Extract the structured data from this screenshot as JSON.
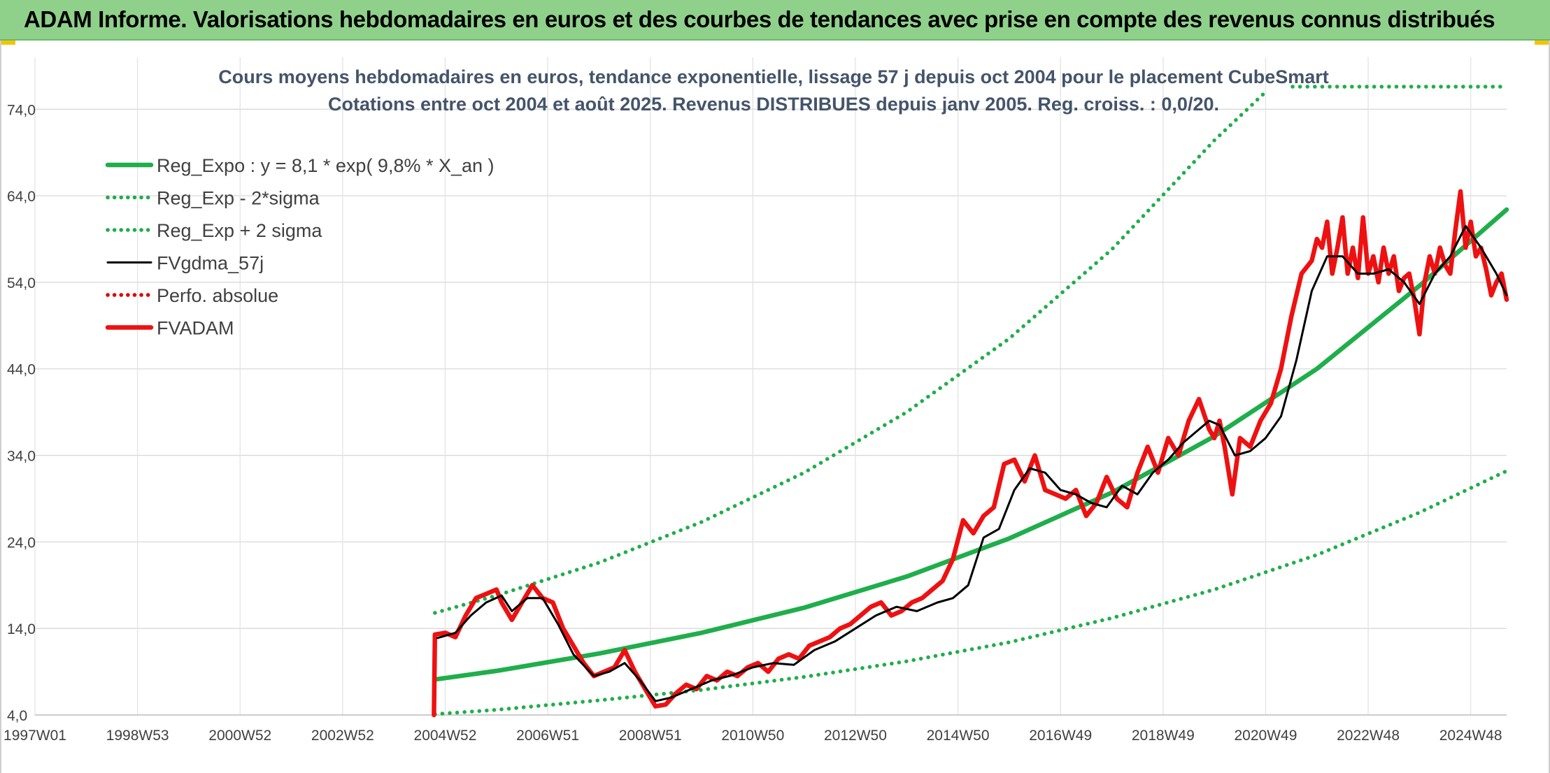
{
  "header": {
    "title": "ADAM Informe. Valorisations hebdomadaires en euros et des courbes de tendances avec prise en compte des revenus connus distribués"
  },
  "colors": {
    "header_bg": "#8fd18b",
    "reg_expo": "#1fae4b",
    "sigma_bands": "#1fae4b",
    "smoothed": "#000000",
    "perfo_absolue": "#e00000",
    "fvadam": "#ee1111",
    "grid": "#d9d9d9",
    "title_text": "#44546a"
  },
  "chart_data": {
    "type": "line",
    "title": "Cours moyens hebdomadaires en euros, tendance exponentielle, lissage 57 j depuis oct 2004 pour le placement CubeSmart",
    "subtitle": "Cotations entre oct 2004 et août 2025. Revenus DISTRIBUES depuis janv 2005. Reg. croiss. : 0,0/20.",
    "xlabel": "",
    "ylabel": "",
    "x_range": [
      1997.0,
      2025.7
    ],
    "ylim": [
      4,
      80
    ],
    "y_ticks": [
      4,
      14,
      24,
      34,
      44,
      54,
      64,
      74
    ],
    "y_tick_labels": [
      "4,0",
      "14,0",
      "24,0",
      "34,0",
      "44,0",
      "54,0",
      "64,0",
      "74,0"
    ],
    "x_ticks": [
      {
        "x": 1997.0,
        "label": "1997W01"
      },
      {
        "x": 1999.0,
        "label": "1998W53"
      },
      {
        "x": 2001.0,
        "label": "2000W52"
      },
      {
        "x": 2003.0,
        "label": "2002W52"
      },
      {
        "x": 2005.0,
        "label": "2004W52"
      },
      {
        "x": 2007.0,
        "label": "2006W51"
      },
      {
        "x": 2009.0,
        "label": "2008W51"
      },
      {
        "x": 2011.0,
        "label": "2010W50"
      },
      {
        "x": 2013.0,
        "label": "2012W50"
      },
      {
        "x": 2015.0,
        "label": "2014W50"
      },
      {
        "x": 2017.0,
        "label": "2016W49"
      },
      {
        "x": 2019.0,
        "label": "2018W49"
      },
      {
        "x": 2021.0,
        "label": "2020W49"
      },
      {
        "x": 2023.0,
        "label": "2022W48"
      },
      {
        "x": 2025.0,
        "label": "2024W48"
      }
    ],
    "grid": true,
    "legend_position": "top-left",
    "series": [
      {
        "name": "Reg_Expo : y = 8,1 * exp( 9,8% *  X_an )",
        "style": "solid-thick",
        "color": "#1fae4b",
        "x": [
          2004.8,
          2006,
          2008,
          2010,
          2012,
          2014,
          2016,
          2018,
          2020,
          2022,
          2024,
          2025.7
        ],
        "values": [
          8.1,
          9.1,
          11.1,
          13.5,
          16.4,
          20.0,
          24.4,
          29.7,
          36.2,
          44.0,
          53.6,
          62.4
        ]
      },
      {
        "name": "Reg_Exp - 2*sigma",
        "style": "dotted",
        "color": "#1fae4b",
        "x": [
          2004.8,
          2006,
          2008,
          2010,
          2012,
          2014,
          2016,
          2018,
          2020,
          2022,
          2024,
          2025.7
        ],
        "values": [
          4.1,
          4.6,
          5.7,
          6.9,
          8.4,
          10.2,
          12.4,
          15.2,
          18.5,
          22.5,
          27.4,
          32.2
        ]
      },
      {
        "name": "Reg_Exp + 2 sigma",
        "style": "dotted",
        "color": "#1fae4b",
        "x": [
          2004.8,
          2006,
          2008,
          2010,
          2012,
          2014,
          2016,
          2018,
          2020,
          2021.0
        ],
        "values": [
          15.8,
          17.8,
          21.6,
          26.3,
          32.0,
          39.0,
          47.5,
          57.8,
          70.4,
          76.0
        ]
      },
      {
        "name": "FVgdma_57j",
        "style": "solid",
        "color": "#000000",
        "x": [
          2004.85,
          2005.2,
          2005.5,
          2005.8,
          2006.1,
          2006.3,
          2006.6,
          2006.9,
          2007.2,
          2007.5,
          2007.9,
          2008.2,
          2008.5,
          2008.8,
          2009.1,
          2009.4,
          2009.8,
          2010.2,
          2010.6,
          2011.0,
          2011.4,
          2011.8,
          2012.2,
          2012.6,
          2013.0,
          2013.4,
          2013.8,
          2014.2,
          2014.6,
          2014.9,
          2015.2,
          2015.5,
          2015.8,
          2016.1,
          2016.4,
          2016.7,
          2017.0,
          2017.3,
          2017.6,
          2017.9,
          2018.2,
          2018.5,
          2018.8,
          2019.1,
          2019.4,
          2019.7,
          2019.9,
          2020.1,
          2020.4,
          2020.7,
          2021.0,
          2021.3,
          2021.6,
          2021.9,
          2022.2,
          2022.5,
          2022.8,
          2023.1,
          2023.4,
          2023.7,
          2024.0,
          2024.3,
          2024.6,
          2024.9,
          2025.2,
          2025.5,
          2025.7
        ],
        "values": [
          12.9,
          13.5,
          15.5,
          17.0,
          17.8,
          16.0,
          17.5,
          17.5,
          14.5,
          11.0,
          8.5,
          9.0,
          10.0,
          8.0,
          5.6,
          6.0,
          7.0,
          8.0,
          8.6,
          9.5,
          10.0,
          9.8,
          11.5,
          12.5,
          14.0,
          15.5,
          16.5,
          16.0,
          17.0,
          17.5,
          19.0,
          24.5,
          25.5,
          30.0,
          32.5,
          32.0,
          30.0,
          29.5,
          28.5,
          28.0,
          30.5,
          29.5,
          32.0,
          33.5,
          35.5,
          37.0,
          38.0,
          37.5,
          34.0,
          34.5,
          36.0,
          38.5,
          45.0,
          53.0,
          57.0,
          57.0,
          55.0,
          55.0,
          55.5,
          54.0,
          51.5,
          55.0,
          57.0,
          60.5,
          58.0,
          55.0,
          52.5
        ]
      },
      {
        "name": "Perfo. absolue",
        "style": "dotted",
        "color": "#e00000",
        "x": [],
        "values": []
      },
      {
        "name": "FVADAM",
        "style": "solid-thick",
        "color": "#ee1111",
        "x": [
          2004.78,
          2004.8,
          2005.0,
          2005.2,
          2005.4,
          2005.6,
          2005.8,
          2006.0,
          2006.1,
          2006.3,
          2006.5,
          2006.7,
          2006.9,
          2007.1,
          2007.3,
          2007.5,
          2007.7,
          2007.9,
          2008.1,
          2008.3,
          2008.5,
          2008.7,
          2008.9,
          2009.1,
          2009.3,
          2009.5,
          2009.7,
          2009.9,
          2010.1,
          2010.3,
          2010.5,
          2010.7,
          2010.9,
          2011.1,
          2011.3,
          2011.5,
          2011.7,
          2011.9,
          2012.1,
          2012.3,
          2012.5,
          2012.7,
          2012.9,
          2013.1,
          2013.3,
          2013.5,
          2013.7,
          2013.9,
          2014.1,
          2014.3,
          2014.5,
          2014.7,
          2014.9,
          2015.1,
          2015.3,
          2015.5,
          2015.7,
          2015.9,
          2016.1,
          2016.3,
          2016.5,
          2016.7,
          2016.9,
          2017.1,
          2017.3,
          2017.5,
          2017.7,
          2017.9,
          2018.1,
          2018.3,
          2018.5,
          2018.7,
          2018.9,
          2019.1,
          2019.3,
          2019.5,
          2019.7,
          2019.9,
          2020.0,
          2020.1,
          2020.2,
          2020.35,
          2020.5,
          2020.7,
          2020.9,
          2021.1,
          2021.3,
          2021.5,
          2021.7,
          2021.9,
          2022.0,
          2022.1,
          2022.2,
          2022.3,
          2022.4,
          2022.5,
          2022.6,
          2022.7,
          2022.8,
          2022.9,
          2023.0,
          2023.1,
          2023.2,
          2023.3,
          2023.4,
          2023.5,
          2023.6,
          2023.7,
          2023.8,
          2023.9,
          2024.0,
          2024.1,
          2024.2,
          2024.3,
          2024.4,
          2024.5,
          2024.6,
          2024.7,
          2024.8,
          2024.9,
          2025.0,
          2025.1,
          2025.2,
          2025.3,
          2025.4,
          2025.5,
          2025.6,
          2025.7
        ],
        "values": [
          4.0,
          13.3,
          13.5,
          13.0,
          15.5,
          17.5,
          18.0,
          18.5,
          17.0,
          15.0,
          17.0,
          19.0,
          17.5,
          17.0,
          14.0,
          12.0,
          10.0,
          8.5,
          9.0,
          9.5,
          11.5,
          9.0,
          7.0,
          5.0,
          5.2,
          6.5,
          7.5,
          7.0,
          8.5,
          8.0,
          9.0,
          8.5,
          9.5,
          10.0,
          9.0,
          10.5,
          11.0,
          10.5,
          12.0,
          12.5,
          13.0,
          14.0,
          14.5,
          15.5,
          16.5,
          17.0,
          15.5,
          16.0,
          17.0,
          17.5,
          18.5,
          19.5,
          22.0,
          26.5,
          25.0,
          27.0,
          28.0,
          33.0,
          33.5,
          31.0,
          34.0,
          30.0,
          29.5,
          29.0,
          30.0,
          27.0,
          28.5,
          31.5,
          29.0,
          28.0,
          32.0,
          35.0,
          32.0,
          36.0,
          34.0,
          38.0,
          40.5,
          37.0,
          36.0,
          38.0,
          35.0,
          29.5,
          36.0,
          35.0,
          38.0,
          40.0,
          44.0,
          50.0,
          55.0,
          56.5,
          59.0,
          58.0,
          61.0,
          55.0,
          58.0,
          61.5,
          55.0,
          58.0,
          54.5,
          61.5,
          55.0,
          57.0,
          54.0,
          58.0,
          55.0,
          57.0,
          53.0,
          54.5,
          55.0,
          52.0,
          48.0,
          54.0,
          57.0,
          55.0,
          58.0,
          56.0,
          55.0,
          60.0,
          64.5,
          58.0,
          61.0,
          57.0,
          58.0,
          55.5,
          52.5,
          54.0,
          55.0,
          52.0
        ]
      }
    ]
  }
}
